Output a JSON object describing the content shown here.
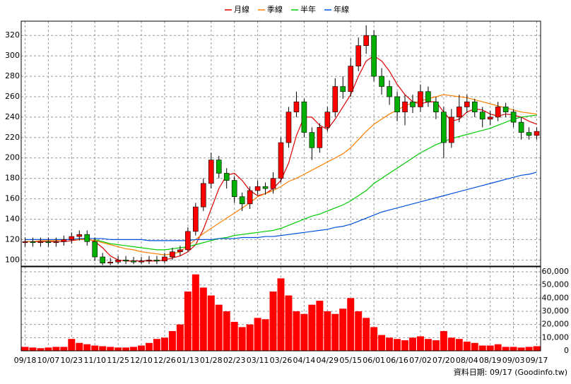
{
  "chart_data": {
    "type": "candlestick",
    "source": "資料日期: 09/17  (Goodinfo.tw)",
    "categories": [
      "09/18",
      null,
      null,
      "10/07",
      null,
      null,
      "10/23",
      null,
      null,
      "11/10",
      null,
      null,
      "11/25",
      null,
      null,
      "12/10",
      null,
      null,
      "12/26",
      null,
      null,
      "01/13",
      null,
      null,
      "01/28",
      null,
      null,
      "02/23",
      null,
      null,
      "03/11",
      null,
      null,
      "03/26",
      null,
      null,
      "04/14",
      null,
      null,
      "04/29",
      null,
      null,
      "05/15",
      null,
      null,
      "06/01",
      null,
      null,
      "06/16",
      null,
      null,
      "07/02",
      null,
      null,
      "07/20",
      null,
      null,
      "08/04",
      null,
      null,
      "08/19",
      null,
      null,
      "09/03",
      null,
      null,
      "09/17"
    ],
    "open": [
      117,
      118,
      117,
      118,
      117,
      118,
      120,
      123,
      125,
      118,
      103,
      97,
      98,
      100,
      99,
      98,
      99,
      100,
      99,
      103,
      108,
      110,
      128,
      152,
      175,
      198,
      185,
      178,
      162,
      155,
      168,
      172,
      170,
      180,
      215,
      245,
      255,
      225,
      210,
      230,
      245,
      270,
      265,
      290,
      310,
      320,
      280,
      270,
      260,
      245,
      255,
      250,
      265,
      255,
      245,
      215,
      240,
      250,
      255,
      245,
      238,
      240,
      250,
      245,
      235,
      225,
      222
    ],
    "high": [
      122,
      122,
      122,
      122,
      122,
      124,
      127,
      129,
      129,
      122,
      107,
      102,
      104,
      104,
      103,
      103,
      104,
      104,
      107,
      112,
      114,
      132,
      156,
      180,
      205,
      202,
      190,
      182,
      166,
      172,
      178,
      176,
      186,
      220,
      250,
      265,
      258,
      230,
      234,
      250,
      278,
      280,
      298,
      318,
      330,
      325,
      288,
      276,
      265,
      262,
      262,
      272,
      270,
      260,
      250,
      248,
      262,
      262,
      258,
      250,
      246,
      255,
      254,
      248,
      240,
      230,
      230
    ],
    "low": [
      113,
      113,
      113,
      113,
      113,
      114,
      116,
      119,
      114,
      99,
      95,
      95,
      96,
      96,
      96,
      96,
      96,
      96,
      97,
      100,
      104,
      108,
      124,
      148,
      170,
      180,
      170,
      156,
      148,
      150,
      164,
      164,
      165,
      176,
      210,
      240,
      220,
      198,
      205,
      226,
      240,
      258,
      260,
      285,
      302,
      275,
      262,
      252,
      236,
      232,
      244,
      245,
      250,
      238,
      200,
      210,
      235,
      244,
      240,
      230,
      232,
      236,
      240,
      230,
      218,
      218,
      218
    ],
    "close": [
      118,
      117,
      118,
      117,
      118,
      120,
      123,
      125,
      118,
      103,
      97,
      98,
      100,
      99,
      98,
      99,
      100,
      99,
      103,
      108,
      110,
      128,
      152,
      175,
      198,
      185,
      178,
      162,
      155,
      168,
      172,
      170,
      180,
      215,
      245,
      255,
      225,
      210,
      230,
      245,
      270,
      265,
      290,
      310,
      320,
      280,
      270,
      260,
      245,
      255,
      250,
      265,
      255,
      245,
      215,
      240,
      250,
      255,
      245,
      238,
      240,
      250,
      245,
      235,
      225,
      222,
      226
    ],
    "up_color": "#ff0000",
    "down_color": "#00b000",
    "series": [
      {
        "name": "月線",
        "color": "#dd0000",
        "values": [
          118,
          118,
          118,
          118,
          118,
          118,
          119,
          120,
          121,
          118,
          112,
          104,
          100,
          99,
          99,
          99,
          99,
          99,
          100,
          102,
          104,
          108,
          115,
          130,
          150,
          170,
          183,
          185,
          178,
          168,
          163,
          165,
          170,
          178,
          195,
          222,
          240,
          240,
          232,
          228,
          238,
          250,
          262,
          280,
          295,
          300,
          295,
          285,
          272,
          262,
          255,
          253,
          255,
          255,
          245,
          236,
          238,
          245,
          248,
          247,
          243,
          241,
          243,
          242,
          240,
          236,
          233
        ]
      },
      {
        "name": "季線",
        "color": "#ff7f00",
        "values": [
          118,
          118,
          119,
          119,
          119,
          120,
          120,
          120,
          120,
          119,
          117,
          115,
          113,
          111,
          110,
          108,
          107,
          106,
          105,
          106,
          108,
          114,
          120,
          126,
          131,
          136,
          141,
          146,
          151,
          156,
          162,
          165,
          168,
          172,
          177,
          180,
          184,
          188,
          192,
          196,
          200,
          204,
          210,
          218,
          226,
          233,
          238,
          243,
          247,
          251,
          254,
          256,
          258,
          260,
          262,
          261,
          260,
          259,
          257,
          255,
          253,
          251,
          249,
          247,
          245,
          244,
          243
        ]
      },
      {
        "name": "半年",
        "color": "#00cc00",
        "values": [
          null,
          null,
          null,
          null,
          null,
          null,
          null,
          null,
          null,
          120,
          118,
          116,
          115,
          114,
          113,
          112,
          111,
          110,
          110,
          111,
          112,
          113,
          115,
          117,
          119,
          121,
          122,
          124,
          125,
          126,
          127,
          128,
          129,
          131,
          134,
          137,
          140,
          143,
          145,
          148,
          151,
          154,
          158,
          163,
          168,
          175,
          180,
          185,
          190,
          195,
          200,
          205,
          209,
          213,
          216,
          219,
          221,
          223,
          225,
          227,
          229,
          232,
          235,
          238,
          240,
          241,
          242
        ]
      },
      {
        "name": "年線",
        "color": "#0050dd",
        "values": [
          120,
          120,
          120,
          120,
          120,
          120,
          120,
          121,
          121,
          121,
          121,
          120,
          120,
          120,
          120,
          120,
          119,
          119,
          119,
          119,
          119,
          119,
          120,
          120,
          120,
          121,
          121,
          121,
          122,
          122,
          122,
          123,
          123,
          124,
          125,
          126,
          127,
          128,
          129,
          130,
          132,
          133,
          135,
          138,
          141,
          144,
          147,
          149,
          151,
          153,
          155,
          157,
          159,
          161,
          163,
          165,
          167,
          169,
          171,
          173,
          175,
          177,
          179,
          181,
          183,
          184,
          186
        ]
      }
    ],
    "ylim": [
      94,
      334
    ],
    "yticks": [
      100,
      120,
      140,
      160,
      180,
      200,
      220,
      240,
      260,
      280,
      300,
      320
    ],
    "grid": true,
    "volume": {
      "color": "#ff0000",
      "values": [
        3000,
        2500,
        2000,
        2500,
        3000,
        3000,
        9000,
        6000,
        5000,
        4000,
        3500,
        3000,
        2500,
        2500,
        3000,
        4000,
        6000,
        9000,
        10000,
        15000,
        20000,
        45000,
        58000,
        48000,
        42000,
        35000,
        30000,
        22000,
        18000,
        20000,
        25000,
        24000,
        45000,
        55000,
        42000,
        30000,
        28000,
        35000,
        38000,
        30000,
        28000,
        32000,
        40000,
        30000,
        25000,
        18000,
        12000,
        10000,
        9000,
        8000,
        10000,
        11000,
        9000,
        8000,
        15000,
        10000,
        9000,
        7000,
        6000,
        4000,
        4000,
        5000,
        3000,
        3000,
        2500,
        3000,
        3500
      ],
      "ylim": [
        0,
        63750
      ],
      "yticks": [
        0,
        {
          "value": 10000,
          "label": "10,000"
        },
        {
          "value": 20000,
          "label": "20,000"
        },
        {
          "value": 30000,
          "label": "30,000"
        },
        {
          "value": 40000,
          "label": "40,000"
        },
        {
          "value": 50000,
          "label": "50,000"
        },
        {
          "value": 60000,
          "label": "60,000"
        }
      ]
    }
  }
}
